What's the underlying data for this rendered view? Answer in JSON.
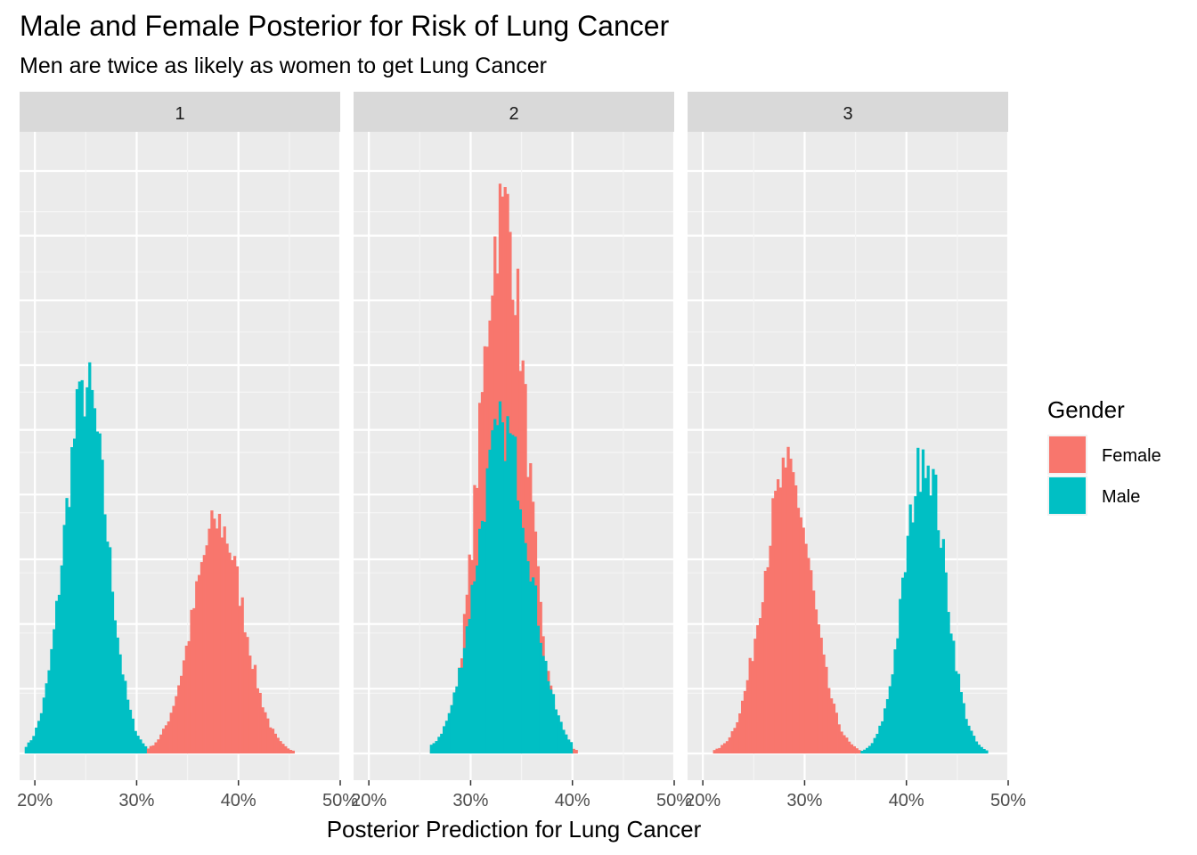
{
  "chart_data": {
    "type": "histogram",
    "title": "Male and Female Posterior for Risk of Lung Cancer",
    "subtitle": "Men are twice as likely as women to get Lung Cancer",
    "xlabel": "Posterior Prediction for Lung Cancer",
    "ylabel": "",
    "xlim": [
      0.185,
      0.5
    ],
    "x_ticks": [
      0.2,
      0.3,
      0.4,
      0.5
    ],
    "x_tick_labels": [
      "20%",
      "30%",
      "40%",
      "50%"
    ],
    "ylim": [
      0,
      1
    ],
    "y_tick_labels_shown": false,
    "grid": true,
    "legend": {
      "title": "Gender",
      "position": "right",
      "entries": [
        {
          "label": "Female",
          "color": "#F8766D"
        },
        {
          "label": "Male",
          "color": "#00BFC4"
        }
      ]
    },
    "bin_width": 0.0025,
    "series_colors": {
      "Female": "#F8766D",
      "Male": "#00BFC4"
    },
    "panels": [
      {
        "label": "1",
        "series": [
          {
            "name": "Male",
            "mean": 0.25,
            "sd": 0.021,
            "range": [
              0.19,
              0.31
            ],
            "peak": 0.62,
            "peak_x": 0.2475
          },
          {
            "name": "Female",
            "mean": 0.38,
            "sd": 0.025,
            "range": [
              0.31,
              0.46
            ],
            "peak": 0.39,
            "peak_x": 0.3775
          }
        ]
      },
      {
        "label": "2",
        "series": [
          {
            "name": "Female",
            "mean": 0.332,
            "sd": 0.0225,
            "range": [
              0.26,
              0.44
            ],
            "peak": 0.925,
            "peak_x": 0.3325
          },
          {
            "name": "Male",
            "mean": 0.332,
            "sd": 0.026,
            "range": [
              0.26,
              0.4
            ],
            "peak": 0.55,
            "peak_x": 0.3325
          }
        ]
      },
      {
        "label": "3",
        "series": [
          {
            "name": "Female",
            "mean": 0.283,
            "sd": 0.024,
            "range": [
              0.21,
              0.36
            ],
            "peak": 0.475,
            "peak_x": 0.2825
          },
          {
            "name": "Male",
            "mean": 0.418,
            "sd": 0.02,
            "range": [
              0.35,
              0.49
            ],
            "peak": 0.505,
            "peak_x": 0.4175
          }
        ]
      }
    ]
  }
}
